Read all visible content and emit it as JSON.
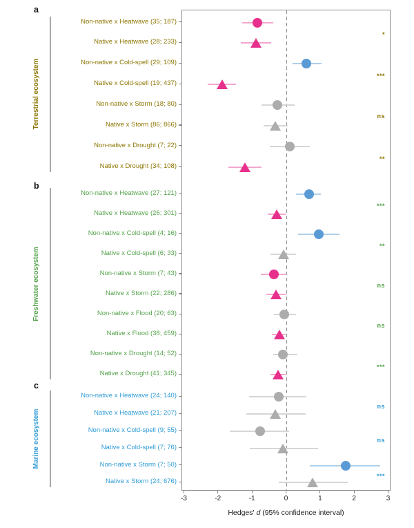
{
  "chart_data": {
    "type": "forest",
    "title": "",
    "xlabel": {
      "prefix": "Hedges' ",
      "italic": "d",
      "suffix": " (95% confidence interval)"
    },
    "x_ticks": [
      -3,
      -2,
      -1,
      0,
      1,
      2,
      3
    ],
    "x_range": [
      -3.07,
      3.07
    ],
    "zero_line": 0,
    "grid": false,
    "marker_shapes": {
      "non_native": "circle",
      "native": "triangle"
    },
    "marker_colors": {
      "pink": "#E7308C",
      "blue": "#5B9BD5",
      "gray": "#ACACAC"
    },
    "ci_colors": {
      "pink": "#F2A8CE",
      "blue": "#AECFEA",
      "gray": "#D6D6D6"
    },
    "panels": [
      {
        "letter": "a",
        "ecosystem": "Terrestrial ecosystem",
        "color": "#8C7500",
        "rows": [
          {
            "label": "Non-native x Heatwave (35; 187)",
            "shape": "circle",
            "color": "pink",
            "d": -0.87,
            "ci": [
              -1.3,
              -0.4
            ]
          },
          {
            "label": "Native x Heatwave (28; 233)",
            "shape": "triangle",
            "color": "pink",
            "d": -0.9,
            "ci": [
              -1.35,
              -0.45
            ]
          },
          {
            "label": "Non-native x Cold-spell (29; 109)",
            "shape": "circle",
            "color": "blue",
            "d": 0.58,
            "ci": [
              0.17,
              1.02
            ]
          },
          {
            "label": "Native x Cold-spell (19; 437)",
            "shape": "triangle",
            "color": "pink",
            "d": -1.89,
            "ci": [
              -2.33,
              -1.48
            ]
          },
          {
            "label": "Non-native x Storm (18; 80)",
            "shape": "circle",
            "color": "gray",
            "d": -0.28,
            "ci": [
              -0.74,
              0.24
            ]
          },
          {
            "label": "Native x Storm (86; 866)",
            "shape": "triangle",
            "color": "gray",
            "d": -0.32,
            "ci": [
              -0.68,
              0.03
            ]
          },
          {
            "label": "Non-native x Drought (7; 22)",
            "shape": "circle",
            "color": "gray",
            "d": 0.09,
            "ci": [
              -0.5,
              0.68
            ]
          },
          {
            "label": "Native x Drought (34; 108)",
            "shape": "triangle",
            "color": "pink",
            "d": -1.21,
            "ci": [
              -1.72,
              -0.74
            ]
          }
        ],
        "significance_per_pair": [
          "*",
          "***",
          "ns",
          "**"
        ]
      },
      {
        "letter": "b",
        "ecosystem": "Freshwater ecosystem",
        "color": "#53A24A",
        "rows": [
          {
            "label": "Non-native x Heatwave (27; 121)",
            "shape": "circle",
            "color": "blue",
            "d": 0.65,
            "ci": [
              0.28,
              1.0
            ]
          },
          {
            "label": "Native x Heatwave (26; 301)",
            "shape": "triangle",
            "color": "pink",
            "d": -0.28,
            "ci": [
              -0.56,
              -0.03
            ]
          },
          {
            "label": "Non-native x Cold-spell (4; 16)",
            "shape": "circle",
            "color": "blue",
            "d": 0.95,
            "ci": [
              0.34,
              1.56
            ]
          },
          {
            "label": "Native x Cold-spell (6; 33)",
            "shape": "triangle",
            "color": "gray",
            "d": -0.08,
            "ci": [
              -0.47,
              0.28
            ]
          },
          {
            "label": "Non-native x Storm (7; 43)",
            "shape": "circle",
            "color": "pink",
            "d": -0.37,
            "ci": [
              -0.76,
              -0.03
            ]
          },
          {
            "label": "Native x Storm (22; 286)",
            "shape": "triangle",
            "color": "pink",
            "d": -0.31,
            "ci": [
              -0.6,
              -0.03
            ]
          },
          {
            "label": "Non-native x Flood (20; 63)",
            "shape": "circle",
            "color": "gray",
            "d": -0.08,
            "ci": [
              -0.37,
              0.28
            ]
          },
          {
            "label": "Native x Flood (38; 459)",
            "shape": "triangle",
            "color": "pink",
            "d": -0.2,
            "ci": [
              -0.43,
              -0.02
            ]
          },
          {
            "label": "Non-native x Drought (14; 52)",
            "shape": "circle",
            "color": "gray",
            "d": -0.11,
            "ci": [
              -0.4,
              0.31
            ]
          },
          {
            "label": "Native x Drought (41; 345)",
            "shape": "triangle",
            "color": "pink",
            "d": -0.24,
            "ci": [
              -0.47,
              -0.03
            ]
          }
        ],
        "significance_per_pair": [
          "***",
          "**",
          "ns",
          "ns",
          "***"
        ]
      },
      {
        "letter": "c",
        "ecosystem": "Marine ecosystem",
        "color": "#2E9BD6",
        "rows": [
          {
            "label": "Non-native x Heatwave (24; 140)",
            "shape": "circle",
            "color": "gray",
            "d": -0.24,
            "ci": [
              -1.11,
              0.58
            ]
          },
          {
            "label": "Native x Heatwave (21; 207)",
            "shape": "triangle",
            "color": "gray",
            "d": -0.33,
            "ci": [
              -1.18,
              0.55
            ]
          },
          {
            "label": "Non-native x Cold-spell (9; 55)",
            "shape": "circle",
            "color": "gray",
            "d": -0.78,
            "ci": [
              -1.68,
              0.07
            ]
          },
          {
            "label": "Native x Cold-spell (7; 76)",
            "shape": "triangle",
            "color": "gray",
            "d": -0.1,
            "ci": [
              -1.08,
              0.92
            ]
          },
          {
            "label": "Non-native x Storm (7; 50)",
            "shape": "circle",
            "color": "blue",
            "d": 1.73,
            "ci": [
              0.68,
              2.74
            ]
          },
          {
            "label": "Native x Storm (24; 676)",
            "shape": "triangle",
            "color": "gray",
            "d": 0.77,
            "ci": [
              -0.23,
              1.8
            ]
          }
        ],
        "significance_per_pair": [
          "ns",
          "ns",
          "***"
        ]
      }
    ]
  }
}
